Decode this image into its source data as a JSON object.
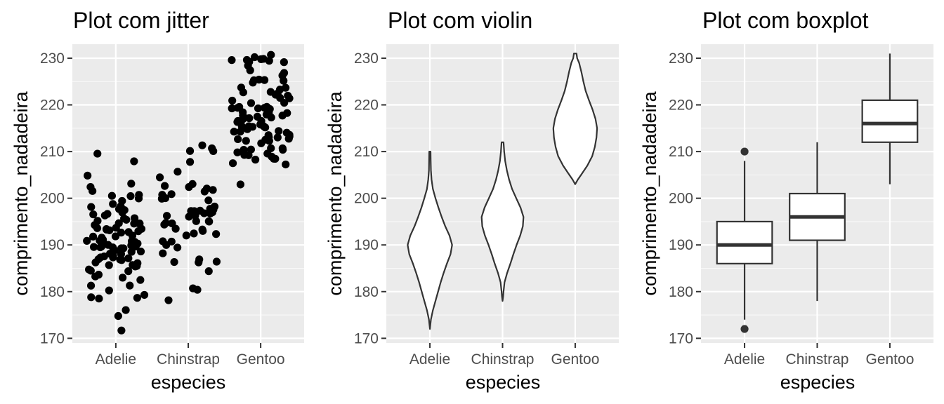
{
  "chart_data": [
    {
      "type": "scatter",
      "title": "Plot com jitter",
      "xlabel": "especies",
      "ylabel": "comprimento_nadadeira",
      "categories": [
        "Adelie",
        "Chinstrap",
        "Gentoo"
      ],
      "ylim": [
        169,
        233
      ],
      "yticks": [
        170,
        180,
        190,
        200,
        210,
        220,
        230
      ],
      "grid": true,
      "legend": "none",
      "point_color": "#000000",
      "points": [
        {
          "group": "Adelie",
          "values": [
            172,
            174,
            176,
            178,
            178,
            179,
            180,
            181,
            181,
            182,
            182,
            183,
            183,
            184,
            184,
            184,
            185,
            185,
            185,
            186,
            186,
            186,
            186,
            187,
            187,
            187,
            187,
            187,
            188,
            188,
            188,
            188,
            188,
            189,
            189,
            189,
            189,
            189,
            189,
            190,
            190,
            190,
            190,
            190,
            190,
            190,
            190,
            190,
            190,
            191,
            191,
            191,
            191,
            191,
            191,
            192,
            192,
            192,
            192,
            192,
            193,
            193,
            193,
            193,
            193,
            194,
            194,
            194,
            194,
            195,
            195,
            195,
            195,
            195,
            196,
            196,
            196,
            196,
            197,
            197,
            197,
            198,
            198,
            198,
            199,
            199,
            200,
            200,
            201,
            201,
            202,
            202,
            203,
            205,
            208,
            210
          ]
        },
        {
          "group": "Chinstrap",
          "values": [
            178,
            181,
            181,
            185,
            187,
            187,
            187,
            187,
            189,
            190,
            190,
            190,
            191,
            192,
            192,
            193,
            193,
            193,
            194,
            194,
            195,
            195,
            195,
            195,
            195,
            196,
            196,
            196,
            196,
            197,
            197,
            197,
            197,
            198,
            198,
            198,
            199,
            199,
            200,
            200,
            201,
            201,
            201,
            202,
            202,
            203,
            203,
            203,
            205,
            206,
            207,
            210,
            210,
            210,
            212
          ]
        },
        {
          "group": "Gentoo",
          "values": [
            203,
            207,
            208,
            208,
            208,
            209,
            209,
            209,
            210,
            210,
            210,
            210,
            210,
            211,
            211,
            211,
            211,
            212,
            212,
            212,
            212,
            213,
            213,
            213,
            213,
            213,
            214,
            214,
            214,
            214,
            215,
            215,
            215,
            215,
            215,
            216,
            216,
            216,
            216,
            216,
            216,
            217,
            217,
            217,
            217,
            217,
            218,
            218,
            218,
            218,
            219,
            219,
            219,
            219,
            220,
            220,
            220,
            220,
            220,
            221,
            221,
            221,
            221,
            222,
            222,
            222,
            222,
            223,
            223,
            223,
            224,
            224,
            224,
            225,
            225,
            225,
            226,
            226,
            227,
            228,
            228,
            229,
            229,
            229,
            230,
            230,
            230,
            230,
            230,
            231
          ]
        }
      ]
    },
    {
      "type": "violin",
      "title": "Plot com violin",
      "xlabel": "especies",
      "ylabel": "comprimento_nadadeira",
      "categories": [
        "Adelie",
        "Chinstrap",
        "Gentoo"
      ],
      "ylim": [
        169,
        233
      ],
      "yticks": [
        170,
        180,
        190,
        200,
        210,
        220,
        230
      ],
      "grid": true,
      "legend": "none",
      "fill_color": "#ffffff",
      "stroke_color": "#333333",
      "violins": [
        {
          "group": "Adelie",
          "range": [
            172,
            210
          ],
          "profile": [
            [
              172,
              0.0
            ],
            [
              174,
              0.03
            ],
            [
              176,
              0.09
            ],
            [
              178,
              0.17
            ],
            [
              180,
              0.25
            ],
            [
              182,
              0.33
            ],
            [
              184,
              0.42
            ],
            [
              186,
              0.52
            ],
            [
              188,
              0.63
            ],
            [
              190,
              0.68
            ],
            [
              192,
              0.6
            ],
            [
              194,
              0.47
            ],
            [
              196,
              0.36
            ],
            [
              198,
              0.26
            ],
            [
              200,
              0.17
            ],
            [
              202,
              0.09
            ],
            [
              204,
              0.05
            ],
            [
              206,
              0.03
            ],
            [
              208,
              0.025
            ],
            [
              210,
              0.02
            ]
          ]
        },
        {
          "group": "Chinstrap",
          "range": [
            178,
            212
          ],
          "profile": [
            [
              178,
              0.0
            ],
            [
              179,
              0.02
            ],
            [
              180,
              0.03
            ],
            [
              182,
              0.06
            ],
            [
              184,
              0.14
            ],
            [
              186,
              0.24
            ],
            [
              188,
              0.33
            ],
            [
              190,
              0.43
            ],
            [
              192,
              0.54
            ],
            [
              194,
              0.62
            ],
            [
              196,
              0.64
            ],
            [
              198,
              0.55
            ],
            [
              200,
              0.42
            ],
            [
              202,
              0.29
            ],
            [
              204,
              0.2
            ],
            [
              206,
              0.13
            ],
            [
              208,
              0.08
            ],
            [
              210,
              0.05
            ],
            [
              212,
              0.03
            ]
          ]
        },
        {
          "group": "Gentoo",
          "range": [
            203,
            231
          ],
          "profile": [
            [
              203,
              0.0
            ],
            [
              204,
              0.08
            ],
            [
              205,
              0.18
            ],
            [
              207,
              0.37
            ],
            [
              209,
              0.52
            ],
            [
              211,
              0.6
            ],
            [
              213,
              0.65
            ],
            [
              215,
              0.67
            ],
            [
              217,
              0.62
            ],
            [
              219,
              0.53
            ],
            [
              221,
              0.42
            ],
            [
              223,
              0.32
            ],
            [
              225,
              0.25
            ],
            [
              227,
              0.19
            ],
            [
              229,
              0.12
            ],
            [
              230,
              0.06
            ],
            [
              231,
              0.04
            ]
          ]
        }
      ]
    },
    {
      "type": "box",
      "title": "Plot com boxplot",
      "xlabel": "especies",
      "ylabel": "comprimento_nadadeira",
      "categories": [
        "Adelie",
        "Chinstrap",
        "Gentoo"
      ],
      "ylim": [
        169,
        233
      ],
      "yticks": [
        170,
        180,
        190,
        200,
        210,
        220,
        230
      ],
      "grid": true,
      "legend": "none",
      "fill_color": "#ffffff",
      "stroke_color": "#333333",
      "boxes": [
        {
          "group": "Adelie",
          "lower_whisker": 174,
          "q1": 186,
          "median": 190,
          "q3": 195,
          "upper_whisker": 208,
          "outliers": [
            172,
            210
          ]
        },
        {
          "group": "Chinstrap",
          "lower_whisker": 178,
          "q1": 191,
          "median": 196,
          "q3": 201,
          "upper_whisker": 212,
          "outliers": []
        },
        {
          "group": "Gentoo",
          "lower_whisker": 203,
          "q1": 212,
          "median": 216,
          "q3": 221,
          "upper_whisker": 231,
          "outliers": []
        }
      ]
    }
  ],
  "colors": {
    "panel_background": "#ebebeb",
    "grid_major": "#ffffff",
    "tick_label": "#4d4d4d",
    "tick_mark": "#333333"
  }
}
